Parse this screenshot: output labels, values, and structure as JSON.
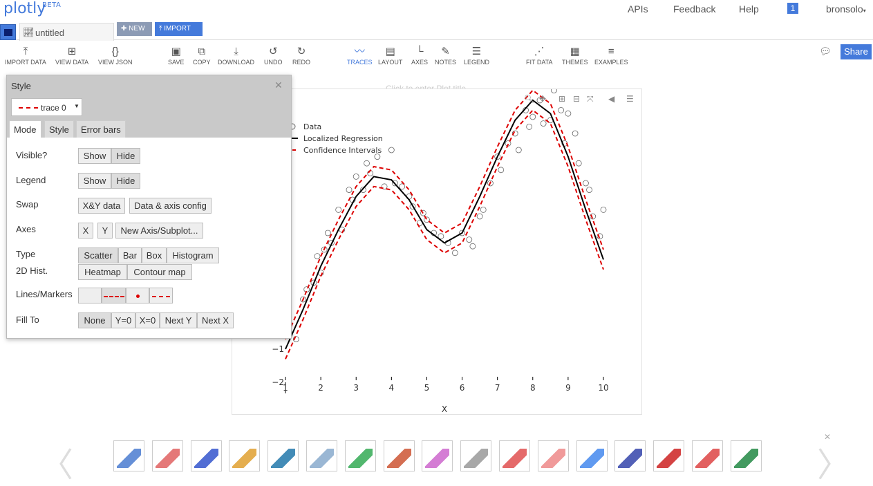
{
  "header": {
    "logo": "plotly",
    "logo_sup": "BETA",
    "nav": [
      "APIs",
      "Feedback",
      "Help"
    ],
    "notification_count": "1",
    "user": "bronsolo"
  },
  "tabs": {
    "file_name": "untitled",
    "new_label": "NEW",
    "import_label": "IMPORT"
  },
  "toolbar": {
    "groups": [
      [
        {
          "label": "IMPORT DATA",
          "icon": "upload-icon"
        },
        {
          "label": "VIEW DATA",
          "icon": "grid-icon"
        },
        {
          "label": "VIEW JSON",
          "icon": "braces-icon"
        }
      ],
      [
        {
          "label": "SAVE",
          "icon": "save-icon"
        },
        {
          "label": "COPY",
          "icon": "copy-icon"
        },
        {
          "label": "DOWNLOAD",
          "icon": "download-icon"
        },
        {
          "label": "UNDO",
          "icon": "undo-icon"
        },
        {
          "label": "REDO",
          "icon": "redo-icon"
        }
      ],
      [
        {
          "label": "TRACES",
          "icon": "traces-icon",
          "active": true
        },
        {
          "label": "LAYOUT",
          "icon": "layout-icon"
        },
        {
          "label": "AXES",
          "icon": "axes-icon"
        },
        {
          "label": "NOTES",
          "icon": "pencil-icon"
        },
        {
          "label": "LEGEND",
          "icon": "legend-icon"
        }
      ],
      [
        {
          "label": "FIT DATA",
          "icon": "fit-icon"
        },
        {
          "label": "THEMES",
          "icon": "paint-icon"
        },
        {
          "label": "EXAMPLES",
          "icon": "examples-icon"
        }
      ]
    ],
    "share_label": "Share"
  },
  "style_panel": {
    "title": "Style",
    "trace_name": "trace 0",
    "tabs": [
      "Mode",
      "Style",
      "Error bars"
    ],
    "active_tab": "Mode",
    "rows": {
      "visible": {
        "label": "Visible?",
        "options": [
          "Show",
          "Hide"
        ]
      },
      "legend": {
        "label": "Legend",
        "options": [
          "Show",
          "Hide"
        ]
      },
      "swap": {
        "label": "Swap",
        "options": [
          "X&Y data",
          "Data & axis config"
        ]
      },
      "axes": {
        "label": "Axes",
        "options": [
          "X",
          "Y",
          "New Axis/Subplot..."
        ]
      },
      "type": {
        "label": "Type",
        "label2": "2D Hist.",
        "options": [
          "Scatter",
          "Bar",
          "Box",
          "Histogram"
        ],
        "options2": [
          "Heatmap",
          "Contour map"
        ]
      },
      "lines_markers": {
        "label": "Lines/Markers"
      },
      "fill_to": {
        "label": "Fill To",
        "options": [
          "None",
          "Y=0",
          "X=0",
          "Next Y",
          "Next X"
        ]
      }
    }
  },
  "plot": {
    "title_placeholder": "Click to enter Plot title"
  },
  "chart_data": {
    "type": "line",
    "title": "",
    "xlabel": "X",
    "ylabel": "",
    "xlim": [
      1,
      10
    ],
    "ylim": [
      -2,
      7
    ],
    "x_ticks": [
      "1",
      "2",
      "3",
      "4",
      "5",
      "6",
      "7",
      "8",
      "9",
      "10"
    ],
    "y_ticks": [
      "−2",
      "−1"
    ],
    "legend": [
      "Data",
      "Localized Regression",
      "Confidence Intervals"
    ],
    "legend_position": "top-left",
    "colors": {
      "data": "#444444",
      "regression": "#000000",
      "confidence": "#dd0000"
    },
    "series": [
      {
        "name": "Localized Regression",
        "x": [
          1,
          1.5,
          2,
          2.5,
          3,
          3.5,
          4,
          4.5,
          5,
          5.5,
          6,
          6.5,
          7,
          7.5,
          8,
          8.5,
          9,
          9.5,
          10
        ],
        "y": [
          -1,
          0.2,
          1.5,
          2.6,
          3.6,
          4.2,
          4.1,
          3.5,
          2.6,
          2.2,
          2.5,
          3.6,
          4.8,
          5.9,
          6.5,
          6.1,
          4.8,
          3.2,
          1.7
        ]
      },
      {
        "name": "Confidence Intervals",
        "x": [
          1,
          1.5,
          2,
          2.5,
          3,
          3.5,
          4,
          4.5,
          5,
          5.5,
          6,
          6.5,
          7,
          7.5,
          8,
          8.5,
          9,
          9.5,
          10
        ],
        "y": [
          -0.7,
          0.5,
          1.8,
          2.9,
          3.9,
          4.5,
          4.4,
          3.8,
          2.9,
          2.5,
          2.8,
          3.9,
          5.1,
          6.2,
          6.8,
          6.4,
          5.1,
          3.5,
          2.0
        ]
      },
      {
        "name": "Confidence Intervals",
        "x": [
          1,
          1.5,
          2,
          2.5,
          3,
          3.5,
          4,
          4.5,
          5,
          5.5,
          6,
          6.5,
          7,
          7.5,
          8,
          8.5,
          9,
          9.5,
          10
        ],
        "y": [
          -1.3,
          -0.1,
          1.2,
          2.3,
          3.3,
          3.9,
          3.8,
          3.2,
          2.3,
          1.9,
          2.2,
          3.3,
          4.5,
          5.6,
          6.2,
          5.8,
          4.5,
          2.9,
          1.4
        ]
      }
    ],
    "points": {
      "x": [
        1.1,
        1.3,
        1.5,
        1.6,
        1.8,
        1.9,
        2.0,
        2.1,
        2.2,
        2.3,
        2.5,
        2.6,
        2.8,
        2.9,
        3.0,
        3.2,
        3.3,
        3.4,
        3.6,
        3.8,
        4.0,
        4.1,
        4.3,
        4.5,
        4.6,
        4.8,
        4.9,
        5.0,
        5.2,
        5.4,
        5.6,
        5.8,
        6.0,
        6.2,
        6.3,
        6.5,
        6.6,
        6.8,
        7.0,
        7.1,
        7.3,
        7.5,
        7.6,
        7.8,
        7.9,
        8.0,
        8.2,
        8.3,
        8.5,
        8.6,
        8.8,
        8.9,
        9.0,
        9.2,
        9.3,
        9.5,
        9.6,
        9.7,
        9.9,
        10.0
      ],
      "y": [
        -0.5,
        -0.7,
        0.5,
        0.8,
        1.0,
        1.8,
        1.3,
        2.0,
        2.5,
        2.2,
        3.2,
        2.6,
        3.8,
        3.5,
        4.2,
        3.8,
        4.6,
        4.3,
        4.8,
        3.9,
        5.0,
        4.0,
        3.9,
        3.6,
        3.3,
        2.8,
        3.1,
        2.9,
        2.5,
        2.4,
        2.2,
        1.9,
        2.5,
        2.3,
        2.1,
        3.0,
        3.2,
        4.0,
        4.8,
        4.4,
        5.2,
        5.5,
        5.0,
        6.2,
        5.7,
        6.0,
        6.5,
        5.8,
        5.9,
        6.8,
        6.2,
        5.2,
        6.1,
        5.5,
        4.6,
        4.0,
        3.8,
        3.0,
        2.4,
        3.2
      ]
    }
  },
  "gallery": {
    "count": 17
  }
}
